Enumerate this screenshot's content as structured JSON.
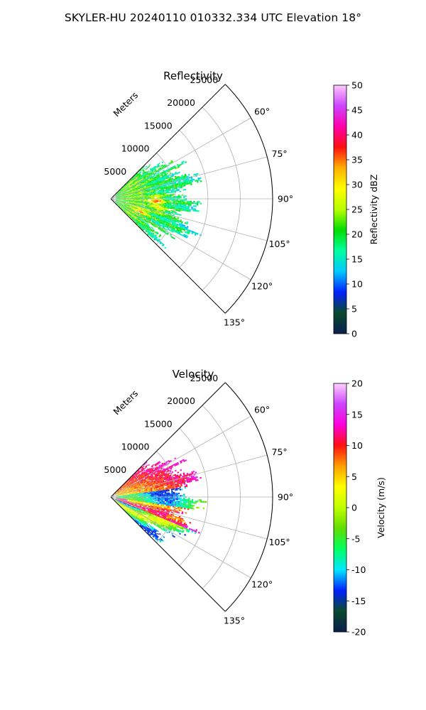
{
  "suptitle": "SKYLER-HU  20240110  010332.334 UTC Elevation 18°",
  "chart_data": [
    {
      "type": "heatmap",
      "subtype": "polar-sector (PPI radar)",
      "title": "Reflectivity",
      "radial_label": "Meters",
      "r_ticks": [
        5000,
        10000,
        15000,
        20000,
        25000
      ],
      "r_range": [
        0,
        25000
      ],
      "theta_ticks_deg": [
        60,
        75,
        90,
        105,
        120,
        135
      ],
      "theta_range_deg": [
        45,
        135
      ],
      "colorbar": {
        "label": "Reflectivity dBZ",
        "range": [
          0,
          50
        ],
        "ticks": [
          0,
          5,
          10,
          15,
          20,
          25,
          30,
          35,
          40,
          45,
          50
        ],
        "stops": [
          "#0a1f4d",
          "#0b4a2e",
          "#0020ff",
          "#00c8ff",
          "#00ffa0",
          "#00dd00",
          "#b8ff00",
          "#ffff00",
          "#ffb000",
          "#ff1010",
          "#ff00aa",
          "#cc44ff",
          "#ffc8ff"
        ]
      },
      "echo_extent_m": 14000,
      "echo_values_dbz": "mostly 15–25 dBZ, embedded 30–38 dBZ cores near 7000 m"
    },
    {
      "type": "heatmap",
      "subtype": "polar-sector (PPI radar)",
      "title": "Velocity",
      "radial_label": "Meters",
      "r_ticks": [
        5000,
        10000,
        15000,
        20000,
        25000
      ],
      "r_range": [
        0,
        25000
      ],
      "theta_ticks_deg": [
        60,
        75,
        90,
        105,
        120,
        135
      ],
      "theta_range_deg": [
        45,
        135
      ],
      "colorbar": {
        "label": "Velocity (m/s)",
        "range": [
          -20,
          20
        ],
        "ticks": [
          -20,
          -15,
          -10,
          -5,
          0,
          5,
          10,
          15,
          20
        ],
        "stops": [
          "#0a1f4d",
          "#0b4a2e",
          "#0020ff",
          "#00e8ff",
          "#00ff60",
          "#60dd00",
          "#c0ff00",
          "#ffff00",
          "#ffa000",
          "#ff1010",
          "#ff00dd",
          "#cc44ff",
          "#ffd0ff"
        ]
      },
      "echo_extent_m": 14000,
      "echo_values_ms": "-12 to +12 m/s; positive north of 90°, negative band near 90°, mixed south"
    }
  ]
}
